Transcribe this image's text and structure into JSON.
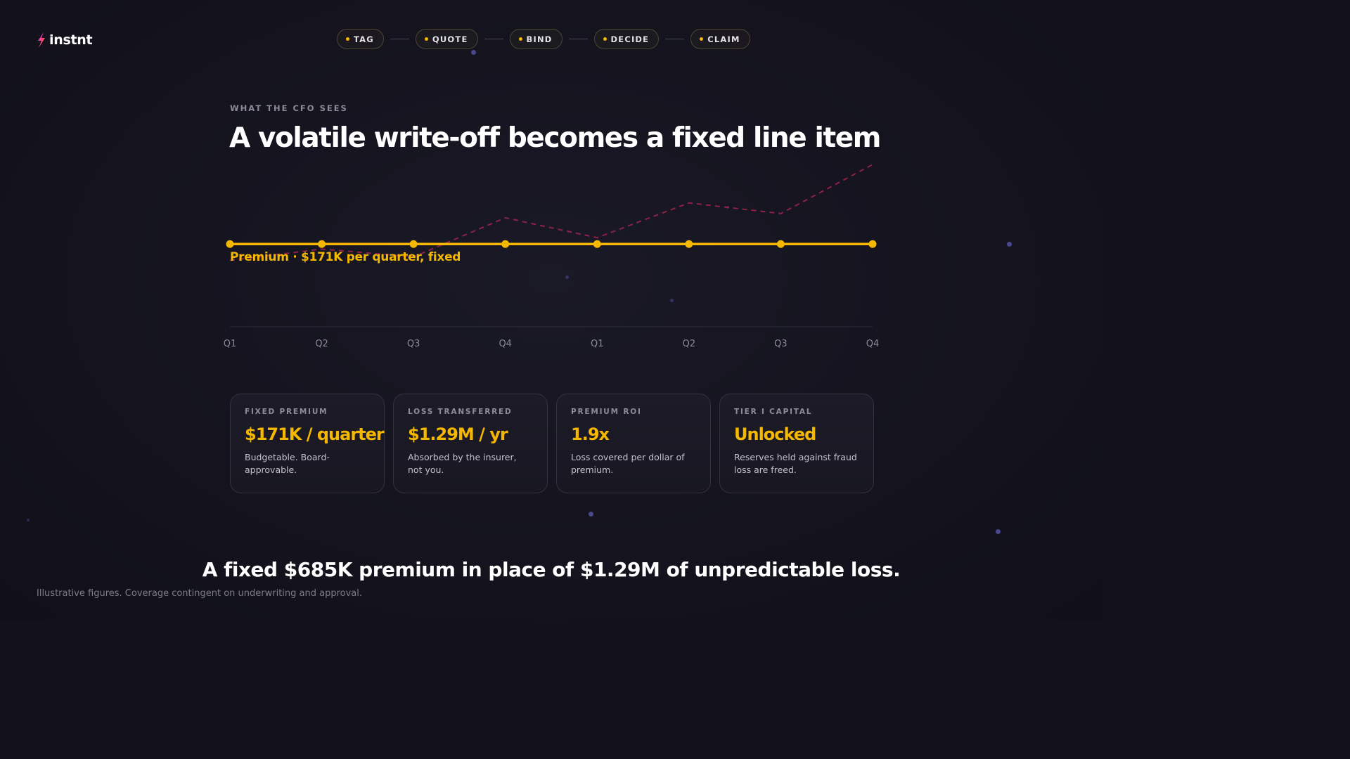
{
  "brand": {
    "name": "instnt"
  },
  "steps": [
    {
      "label": "TAG"
    },
    {
      "label": "QUOTE"
    },
    {
      "label": "BIND"
    },
    {
      "label": "DECIDE"
    },
    {
      "label": "CLAIM"
    }
  ],
  "section": {
    "eyebrow": "WHAT THE CFO SEES",
    "title": "A volatile write-off becomes a fixed line item"
  },
  "chart_data": {
    "type": "line",
    "categories": [
      "Q1",
      "Q2",
      "Q3",
      "Q4",
      "Q1",
      "Q2",
      "Q3",
      "Q4"
    ],
    "series": [
      {
        "name": "Premium · $171K per quarter, fixed",
        "values": [
          171,
          171,
          171,
          171,
          171,
          171,
          171,
          171
        ],
        "color": "#f5b800",
        "style": "solid"
      },
      {
        "values": [
          148,
          164,
          153,
          208,
          180,
          229,
          214,
          283
        ],
        "color": "#a3234e",
        "style": "dashed"
      }
    ],
    "ylim": [
      0,
      300
    ],
    "grid": false
  },
  "cards": [
    {
      "label": "FIXED PREMIUM",
      "value": "$171K / quarter",
      "desc": "Budgetable. Board-approvable."
    },
    {
      "label": "LOSS TRANSFERRED",
      "value": "$1.29M / yr",
      "desc": "Absorbed by the insurer, not you."
    },
    {
      "label": "PREMIUM ROI",
      "value": "1.9x",
      "desc": "Loss covered per dollar of premium."
    },
    {
      "label": "TIER I CAPITAL",
      "value": "Unlocked",
      "desc": "Reserves held against fraud loss are freed."
    }
  ],
  "conclusion": "A fixed $685K premium in place of $1.29M of unpredictable loss.",
  "disclaimer": "Illustrative figures. Coverage contingent on underwriting and approval.",
  "colors": {
    "accent": "#f5b800",
    "loss": "#a3234e",
    "background": "#13121c"
  }
}
